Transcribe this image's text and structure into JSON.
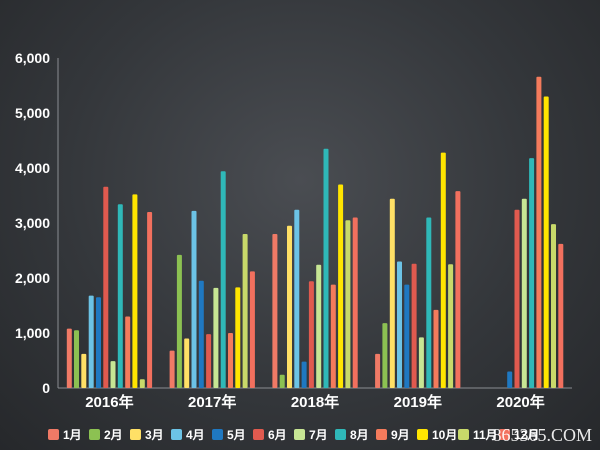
{
  "chart_data": {
    "type": "bar",
    "title": "",
    "xlabel": "",
    "ylabel": "",
    "ylim": [
      0,
      6000
    ],
    "yticks": [
      "0",
      "1,000",
      "2,000",
      "3,000",
      "4,000",
      "5,000",
      "6,000"
    ],
    "grid": false,
    "legend_position": "bottom",
    "categories": [
      "2016年",
      "2017年",
      "2018年",
      "2019年",
      "2020年"
    ],
    "series": [
      {
        "name": "1月",
        "color": "#f07a66",
        "values": [
          1080,
          680,
          2800,
          620,
          null
        ]
      },
      {
        "name": "2月",
        "color": "#8cc152",
        "values": [
          1050,
          2420,
          240,
          1180,
          null
        ]
      },
      {
        "name": "3月",
        "color": "#ffe066",
        "values": [
          620,
          900,
          2950,
          3440,
          null
        ]
      },
      {
        "name": "4月",
        "color": "#6cc3e6",
        "values": [
          1680,
          3220,
          3240,
          2300,
          null
        ]
      },
      {
        "name": "5月",
        "color": "#1f78c1",
        "values": [
          1650,
          1950,
          480,
          1880,
          300
        ]
      },
      {
        "name": "6月",
        "color": "#e05a4f",
        "values": [
          3660,
          980,
          1940,
          2260,
          3240
        ]
      },
      {
        "name": "7月",
        "color": "#c7e694",
        "values": [
          490,
          1820,
          2240,
          920,
          3440
        ]
      },
      {
        "name": "8月",
        "color": "#2fb8b8",
        "values": [
          3340,
          3940,
          4350,
          3100,
          4180
        ]
      },
      {
        "name": "9月",
        "color": "#f47b5c",
        "values": [
          1300,
          1000,
          1880,
          1420,
          5660
        ]
      },
      {
        "name": "10月",
        "color": "#ffe500",
        "values": [
          3520,
          1830,
          3700,
          4280,
          5300
        ]
      },
      {
        "name": "11月",
        "color": "#c8d96a",
        "values": [
          160,
          2800,
          3050,
          2250,
          2980
        ]
      },
      {
        "name": "12月",
        "color": "#f2705e",
        "values": [
          3200,
          2120,
          3100,
          3580,
          2620
        ]
      }
    ]
  },
  "watermark": "865365.COM"
}
